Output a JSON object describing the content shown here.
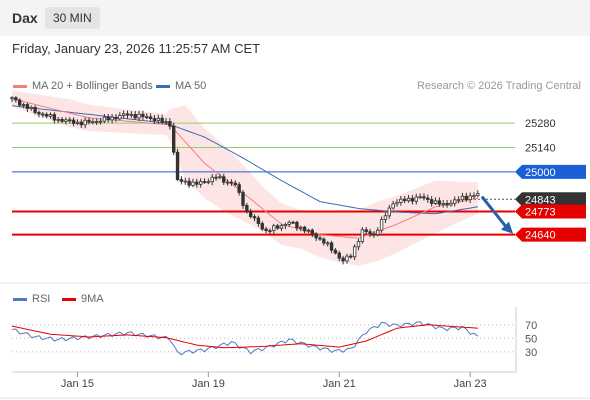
{
  "header": {
    "title": "Dax",
    "timeframe": "30 MIN"
  },
  "datetime": "Friday, January 23, 2026 11:25:57 AM CET",
  "copyright": "Research © 2026 Trading Central",
  "colors": {
    "support": "#e60000",
    "resistance": "#99cc66",
    "pivot": "#1a5fd6",
    "last": "#333333",
    "ma20": "#f08080",
    "bollinger_fill": "#fde2e2",
    "ma50": "#3a6db3",
    "rsi": "#4d79c7",
    "rsi_ma": "#e60000",
    "arrow": "#2a5ea8",
    "candle": "#333333"
  },
  "chart_data": [
    {
      "type": "candlestick",
      "legend": [
        "MA 20 + Bollinger Bands",
        "MA 50"
      ],
      "ylim": [
        24380,
        25470
      ],
      "x_tick_labels": [
        "Jan 15",
        "Jan 19",
        "Jan 21",
        "Jan 23"
      ],
      "levels": [
        {
          "label": "25280",
          "value": 25280,
          "kind": "resistance"
        },
        {
          "label": "25140",
          "value": 25140,
          "kind": "resistance"
        },
        {
          "label": "25000",
          "value": 25000,
          "kind": "pivot"
        },
        {
          "label": "24843",
          "value": 24843,
          "kind": "last"
        },
        {
          "label": "24773",
          "value": 24773,
          "kind": "support"
        },
        {
          "label": "24640",
          "value": 24640,
          "kind": "support"
        }
      ],
      "forecast": {
        "direction": "down",
        "target": 24640
      },
      "close_anchors": [
        [
          0,
          25420
        ],
        [
          6,
          25345
        ],
        [
          12,
          25300
        ],
        [
          18,
          25280
        ],
        [
          24,
          25300
        ],
        [
          30,
          25330
        ],
        [
          36,
          25310
        ],
        [
          41,
          25275
        ],
        [
          43,
          24950
        ],
        [
          48,
          24930
        ],
        [
          53,
          24970
        ],
        [
          58,
          24925
        ],
        [
          61,
          24770
        ],
        [
          66,
          24660
        ],
        [
          72,
          24710
        ],
        [
          76,
          24670
        ],
        [
          81,
          24600
        ],
        [
          86,
          24490
        ],
        [
          88,
          24520
        ],
        [
          91,
          24660
        ],
        [
          94,
          24640
        ],
        [
          99,
          24825
        ],
        [
          106,
          24855
        ],
        [
          112,
          24810
        ],
        [
          117,
          24850
        ],
        [
          121,
          24870
        ]
      ],
      "ma20_anchors": [
        [
          0,
          25420
        ],
        [
          20,
          25310
        ],
        [
          41,
          25270
        ],
        [
          50,
          25050
        ],
        [
          60,
          24880
        ],
        [
          70,
          24700
        ],
        [
          80,
          24640
        ],
        [
          90,
          24620
        ],
        [
          100,
          24700
        ],
        [
          110,
          24800
        ],
        [
          121,
          24850
        ]
      ],
      "bollinger_width_anchors": [
        [
          0,
          45
        ],
        [
          15,
          80
        ],
        [
          40,
          60
        ],
        [
          45,
          210
        ],
        [
          55,
          190
        ],
        [
          65,
          130
        ],
        [
          75,
          110
        ],
        [
          85,
          150
        ],
        [
          95,
          170
        ],
        [
          110,
          150
        ],
        [
          121,
          90
        ]
      ],
      "ma50_anchors": [
        [
          0,
          25380
        ],
        [
          20,
          25330
        ],
        [
          40,
          25280
        ],
        [
          50,
          25200
        ],
        [
          60,
          25080
        ],
        [
          70,
          24950
        ],
        [
          80,
          24830
        ],
        [
          90,
          24790
        ],
        [
          100,
          24770
        ],
        [
          110,
          24760
        ],
        [
          121,
          24800
        ]
      ]
    },
    {
      "type": "line",
      "legend": [
        "RSI",
        "9MA"
      ],
      "ylim": [
        15,
        80
      ],
      "y_tick_labels": [
        "70",
        "50",
        "30"
      ],
      "rsi_anchors": [
        [
          0,
          63
        ],
        [
          6,
          52
        ],
        [
          12,
          48
        ],
        [
          20,
          52
        ],
        [
          30,
          58
        ],
        [
          38,
          52
        ],
        [
          41,
          50
        ],
        [
          43,
          28
        ],
        [
          50,
          33
        ],
        [
          57,
          44
        ],
        [
          62,
          30
        ],
        [
          66,
          36
        ],
        [
          72,
          48
        ],
        [
          78,
          38
        ],
        [
          84,
          31
        ],
        [
          88,
          34
        ],
        [
          92,
          60
        ],
        [
          96,
          72
        ],
        [
          100,
          69
        ],
        [
          106,
          73
        ],
        [
          112,
          64
        ],
        [
          117,
          66
        ],
        [
          121,
          52
        ]
      ],
      "rsi_ma_anchors": [
        [
          0,
          68
        ],
        [
          10,
          56
        ],
        [
          20,
          52
        ],
        [
          30,
          55
        ],
        [
          40,
          51
        ],
        [
          48,
          40
        ],
        [
          55,
          36
        ],
        [
          65,
          38
        ],
        [
          75,
          42
        ],
        [
          85,
          37
        ],
        [
          92,
          46
        ],
        [
          100,
          65
        ],
        [
          108,
          70
        ],
        [
          121,
          65
        ]
      ]
    }
  ]
}
